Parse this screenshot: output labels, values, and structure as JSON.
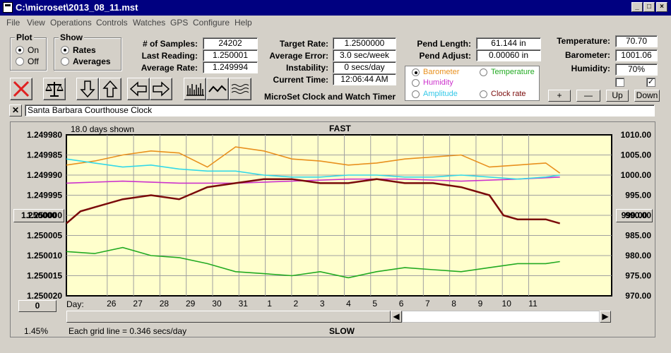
{
  "window": {
    "title": "C:\\microset\\2013_08_11.mst"
  },
  "menu": [
    "File",
    "View",
    "Operations",
    "Controls",
    "Watches",
    "GPS",
    "Configure",
    "Help"
  ],
  "plot": {
    "title": "Plot",
    "options": [
      "On",
      "Off"
    ],
    "selected": "On"
  },
  "show": {
    "title": "Show",
    "options": [
      "Rates",
      "Averages"
    ],
    "selected": "Rates"
  },
  "stats": {
    "samples_label": "# of Samples:",
    "samples": "24202",
    "last_label": "Last Reading:",
    "last": "1.250001",
    "avg_label": "Average Rate:",
    "avg": "1.249994",
    "target_label": "Target Rate:",
    "target": "1.2500000",
    "error_label": "Average Error:",
    "error": "3.0 sec/week",
    "instab_label": "Instability:",
    "instab": "0 secs/day",
    "time_label": "Current Time:",
    "time": "12:06:44 AM",
    "pendlen_label": "Pend Length:",
    "pendlen": "61.144 in",
    "pendadj_label": "Pend Adjust:",
    "pendadj": "0.00060 in",
    "temp_label": "Temperature:",
    "temp": "70.70",
    "baro_label": "Barometer:",
    "baro": "1001.06",
    "hum_label": "Humidity:",
    "hum": "70%"
  },
  "app_title": "MicroSet Clock and Watch Timer",
  "legend": {
    "barometer": "Barometer",
    "temperature": "Temperature",
    "humidity": "Humidity",
    "amplitude": "Amplitude",
    "clockrate": "Clock rate",
    "selected": "Barometer"
  },
  "small_buttons": {
    "plus": "+",
    "minus": "—",
    "up": "Up",
    "down": "Down"
  },
  "clock_name": "Santa Barbara Courthouse Clock",
  "icons": [
    "close-x-icon",
    "balance-scale-icon",
    "arrow-down-icon",
    "arrow-up-icon",
    "arrow-left-icon",
    "arrow-right-icon",
    "bars-view-icon",
    "line-view-icon",
    "wave-view-icon"
  ],
  "colors": {
    "plot_bg": "#ffffcc",
    "clockrate": "#7a0a0a",
    "barometer": "#e8901e",
    "temperature": "#22aa22",
    "humidity": "#cc33cc",
    "amplitude": "#33d8e8",
    "accent": "#000080"
  },
  "chart_data": {
    "type": "line",
    "title": "FAST",
    "bottom_label": "SLOW",
    "days_shown": "18.0 days shown",
    "grid_note": "Each grid line = 0.346 secs/day",
    "percent": "1.45%",
    "left_ticks": [
      "1.249980",
      "1.249985",
      "1.249990",
      "1.249995",
      "1.250000",
      "1.250005",
      "1.250010",
      "1.250015",
      "1.250020"
    ],
    "right_ticks": [
      "1010.00",
      "1005.00",
      "1000.00",
      "995.00",
      "990.00",
      "985.00",
      "980.00",
      "975.00",
      "970.00"
    ],
    "left_center": "1.250000",
    "right_center": "990.00",
    "zero_button": "0",
    "x_label": "Day:",
    "days": [
      "26",
      "27",
      "28",
      "29",
      "30",
      "31",
      "1",
      "2",
      "3",
      "4",
      "5",
      "6",
      "7",
      "8",
      "9",
      "10",
      "11"
    ],
    "series": [
      {
        "name": "Clock rate",
        "color": "#7a0a0a",
        "x": [
          0,
          0.5,
          1,
          2,
          3,
          4,
          5,
          6,
          7,
          8,
          9,
          10,
          11,
          12,
          13,
          14,
          15,
          15.5,
          16,
          17,
          17.5
        ],
        "values": [
          1.250002,
          1.249999,
          1.249998,
          1.249996,
          1.249995,
          1.249996,
          1.249993,
          1.249992,
          1.249991,
          1.249991,
          1.249992,
          1.249992,
          1.249991,
          1.249992,
          1.249992,
          1.249993,
          1.249995,
          1.25,
          1.250001,
          1.250001,
          1.250002
        ]
      },
      {
        "name": "Barometer",
        "color": "#e8901e",
        "x": [
          0,
          1,
          2,
          3,
          4,
          5,
          6,
          7,
          8,
          9,
          10,
          11,
          12,
          13,
          14,
          15,
          16,
          17,
          17.5
        ],
        "values": [
          1002.5,
          1003.5,
          1005.0,
          1006.0,
          1005.5,
          1002.0,
          1007.0,
          1006.0,
          1004.0,
          1003.5,
          1002.5,
          1003.0,
          1004.0,
          1004.5,
          1005.0,
          1002.0,
          1002.5,
          1003.0,
          1000.5
        ]
      },
      {
        "name": "Amplitude",
        "color": "#33d8e8",
        "x": [
          0,
          1,
          2,
          3,
          4,
          5,
          6,
          7,
          8,
          9,
          10,
          11,
          12,
          13,
          14,
          15,
          16,
          17,
          17.5
        ],
        "values": [
          1004.0,
          1003.0,
          1002.0,
          1002.5,
          1001.5,
          1001.0,
          1001.0,
          1000.0,
          999.5,
          999.5,
          1000.0,
          1000.0,
          999.5,
          999.5,
          1000.0,
          999.5,
          999.0,
          999.5,
          1000.0
        ]
      },
      {
        "name": "Humidity",
        "color": "#cc33cc",
        "x": [
          0,
          2,
          4,
          6,
          8,
          10,
          12,
          14,
          16,
          17.5
        ],
        "values": [
          998.0,
          998.5,
          998.0,
          998.0,
          998.5,
          999.0,
          999.0,
          998.5,
          999.0,
          999.5
        ]
      },
      {
        "name": "Temperature",
        "color": "#22aa22",
        "x": [
          0,
          1,
          2,
          3,
          4,
          5,
          6,
          7,
          8,
          9,
          10,
          11,
          12,
          13,
          14,
          15,
          16,
          17,
          17.5
        ],
        "values": [
          981.0,
          980.5,
          982.0,
          980.0,
          979.5,
          978.0,
          976.0,
          975.5,
          975.0,
          976.0,
          974.5,
          976.0,
          977.0,
          976.5,
          976.0,
          977.0,
          978.0,
          978.0,
          978.5
        ]
      }
    ]
  }
}
